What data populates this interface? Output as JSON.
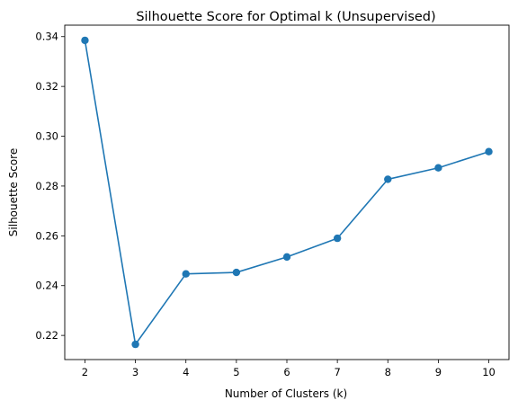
{
  "chart_data": {
    "type": "line",
    "title": "Silhouette Score for Optimal k (Unsupervised)",
    "xlabel": "Number of Clusters (k)",
    "ylabel": "Silhouette Score",
    "x": [
      2,
      3,
      4,
      5,
      6,
      7,
      8,
      9,
      10
    ],
    "series": [
      {
        "values": [
          0.3385,
          0.2164,
          0.2447,
          0.2453,
          0.2515,
          0.259,
          0.2827,
          0.2873,
          0.2938
        ]
      }
    ],
    "xlim": [
      1.6,
      10.4
    ],
    "ylim": [
      0.2103,
      0.3446
    ],
    "xticks": [
      "2",
      "3",
      "4",
      "5",
      "6",
      "7",
      "8",
      "9",
      "10"
    ],
    "yticks": [
      "0.22",
      "0.24",
      "0.26",
      "0.28",
      "0.30",
      "0.32",
      "0.34"
    ],
    "grid": false,
    "marker": "circle",
    "color": "#1f77b4"
  }
}
